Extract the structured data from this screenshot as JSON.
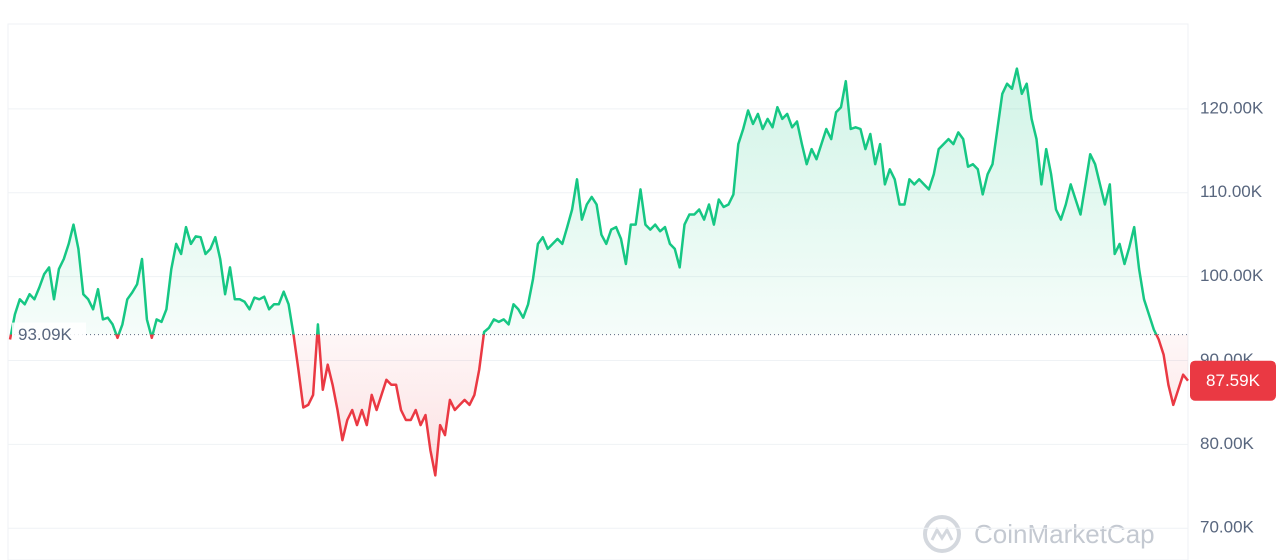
{
  "chart_data": {
    "type": "line",
    "values": [
      92.5,
      95.5,
      97.3,
      96.7,
      97.9,
      97.3,
      98.7,
      100.3,
      101.1,
      97.3,
      100.9,
      102.1,
      103.9,
      106.2,
      103.3,
      97.9,
      97.3,
      96.1,
      98.5,
      94.9,
      95.1,
      94.3,
      92.7,
      94.3,
      97.3,
      98.1,
      99.1,
      102.1,
      94.9,
      92.7,
      94.9,
      94.6,
      96.1,
      100.9,
      103.9,
      102.7,
      105.9,
      103.9,
      104.8,
      104.7,
      102.7,
      103.3,
      104.7,
      102.1,
      97.9,
      101.1,
      97.3,
      97.3,
      97.0,
      96.1,
      97.5,
      97.3,
      97.6,
      96.1,
      96.7,
      96.7,
      98.2,
      96.7,
      93.1,
      88.9,
      84.4,
      84.7,
      85.9,
      94.3,
      86.5,
      89.5,
      87.1,
      84.1,
      80.5,
      82.9,
      84.1,
      82.3,
      84.1,
      82.3,
      85.9,
      84.1,
      85.9,
      87.7,
      87.1,
      87.1,
      84.1,
      82.9,
      82.9,
      84.1,
      82.3,
      83.5,
      79.3,
      76.3,
      82.3,
      81.1,
      85.3,
      84.1,
      84.7,
      85.3,
      84.7,
      85.9,
      88.9,
      93.4,
      93.9,
      94.9,
      94.6,
      94.9,
      94.3,
      96.7,
      96.1,
      95.1,
      96.7,
      99.7,
      103.9,
      104.7,
      103.3,
      103.9,
      104.5,
      103.9,
      105.9,
      108.0,
      111.6,
      106.8,
      108.6,
      109.5,
      108.6,
      105.0,
      103.9,
      105.6,
      105.9,
      104.5,
      101.5,
      106.2,
      106.2,
      110.4,
      106.2,
      105.6,
      106.2,
      105.4,
      105.9,
      103.9,
      103.3,
      101.1,
      106.2,
      107.4,
      107.4,
      108.0,
      106.8,
      108.6,
      106.2,
      109.2,
      108.3,
      108.6,
      109.8,
      115.8,
      117.6,
      119.8,
      118.2,
      119.4,
      117.6,
      118.8,
      117.8,
      120.2,
      118.8,
      119.4,
      117.8,
      118.5,
      115.8,
      113.4,
      115.2,
      114.0,
      115.8,
      117.6,
      116.4,
      119.6,
      120.2,
      123.3,
      117.6,
      117.8,
      117.6,
      115.2,
      117.0,
      113.4,
      115.8,
      111.0,
      112.8,
      111.6,
      108.6,
      108.6,
      111.6,
      111.0,
      111.6,
      111.0,
      110.4,
      112.2,
      115.2,
      115.8,
      116.4,
      115.8,
      117.2,
      116.4,
      113.1,
      113.4,
      112.8,
      109.8,
      112.2,
      113.4,
      117.6,
      121.8,
      123.0,
      122.4,
      124.8,
      121.8,
      123.0,
      118.8,
      116.4,
      111.0,
      115.2,
      112.2,
      108.0,
      106.8,
      108.6,
      111.0,
      109.2,
      107.4,
      111.0,
      114.6,
      113.4,
      111.0,
      108.6,
      111.0,
      102.7,
      103.9,
      101.5,
      103.5,
      105.9,
      100.9,
      97.3,
      95.5,
      93.7,
      92.5,
      90.7,
      87.1,
      84.7,
      86.5,
      88.3,
      87.59
    ],
    "baseline": {
      "value": 93.09,
      "label": "93.09K"
    },
    "last_price": {
      "value": 87.59,
      "label": "87.59K"
    },
    "up_color": "#16c784",
    "down_color": "#ea3943",
    "ylim": [
      68,
      130
    ],
    "yticks": [
      {
        "value": 70,
        "label": "70.00K"
      },
      {
        "value": 80,
        "label": "80.00K"
      },
      {
        "value": 90,
        "label": "90.00K"
      },
      {
        "value": 100,
        "label": "100.00K"
      },
      {
        "value": 110,
        "label": "110.00K"
      },
      {
        "value": 120,
        "label": "120.00K"
      }
    ],
    "grid": true,
    "watermark": "CoinMarketCap"
  }
}
